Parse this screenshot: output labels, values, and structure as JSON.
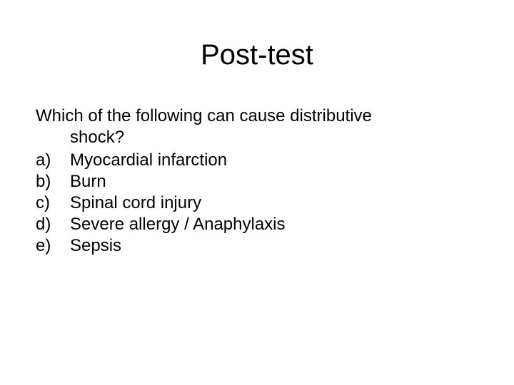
{
  "title": "Post-test",
  "question": {
    "line1": "Which of the following can cause distributive",
    "line2": "shock?"
  },
  "options": [
    {
      "marker": "a)",
      "text": "Myocardial infarction"
    },
    {
      "marker": "b)",
      "text": "Burn"
    },
    {
      "marker": "c)",
      "text": "Spinal cord injury"
    },
    {
      "marker": "d)",
      "text": "Severe allergy / Anaphylaxis"
    },
    {
      "marker": "e)",
      "text": "Sepsis"
    }
  ],
  "style": {
    "background_color": "#ffffff",
    "text_color": "#000000",
    "title_fontsize": 40,
    "body_fontsize": 24,
    "font_family": "Arial"
  }
}
